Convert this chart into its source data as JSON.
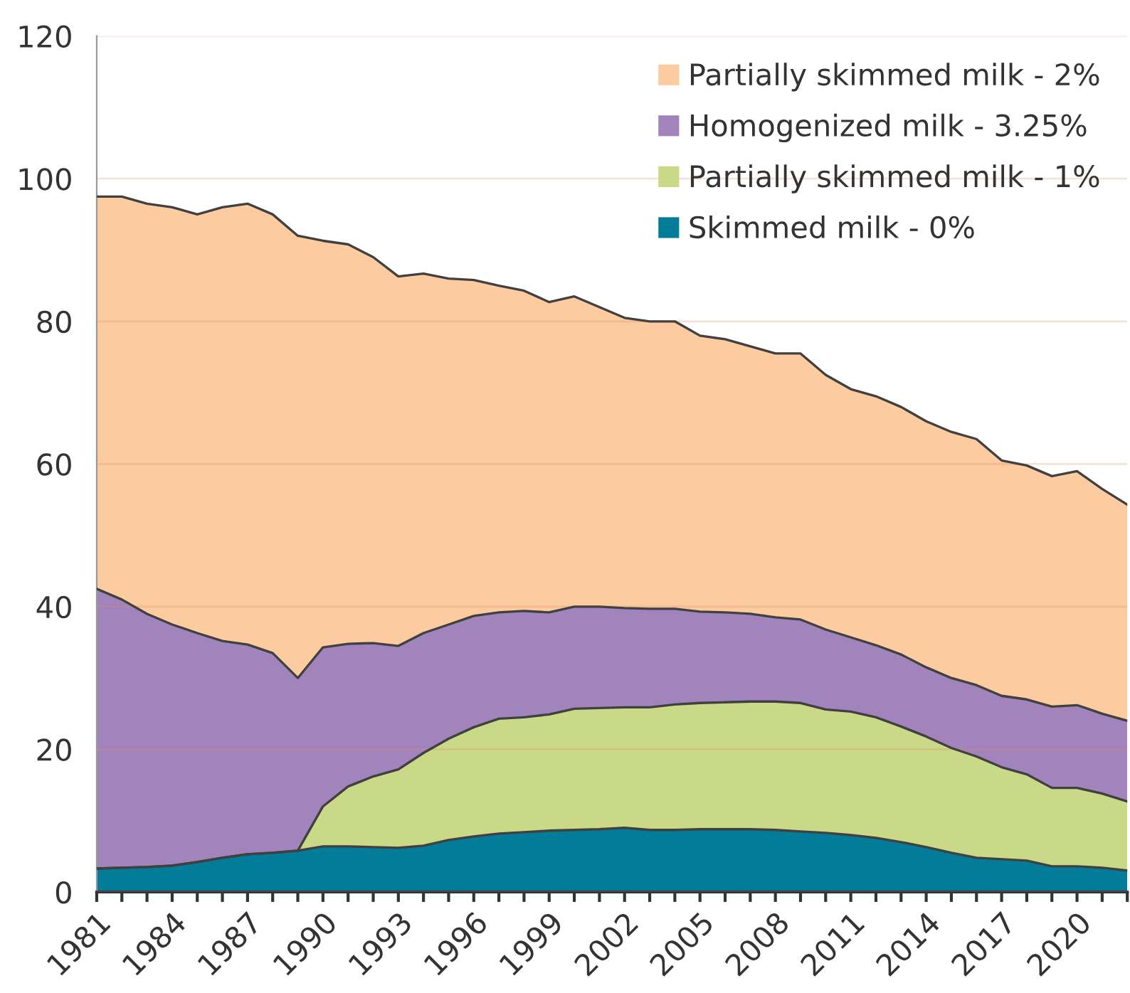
{
  "chart_data": {
    "type": "area",
    "stacked": true,
    "categories": [
      "1981",
      null,
      null,
      "1984",
      null,
      null,
      "1987",
      null,
      null,
      "1990",
      null,
      null,
      "1993",
      null,
      null,
      "1996",
      null,
      null,
      "1999",
      null,
      null,
      "2002",
      null,
      null,
      "2005",
      null,
      null,
      "2008",
      null,
      null,
      "2011",
      null,
      null,
      "2014",
      null,
      null,
      "2017",
      null,
      null,
      "2020",
      null,
      null
    ],
    "series": [
      {
        "name": "Skimmed milk - 0%",
        "color": "#037c99",
        "values": [
          3.3,
          3.4,
          3.5,
          3.7,
          4.2,
          4.8,
          5.3,
          5.5,
          5.8,
          6.4,
          6.4,
          6.3,
          6.2,
          6.5,
          7.3,
          7.8,
          8.2,
          8.4,
          8.6,
          8.7,
          8.8,
          9.0,
          8.7,
          8.7,
          8.8,
          8.8,
          8.8,
          8.7,
          8.5,
          8.3,
          8.0,
          7.6,
          7.0,
          6.3,
          5.5,
          4.8,
          4.6,
          4.4,
          3.6,
          3.6,
          3.4,
          3.0
        ]
      },
      {
        "name": "Partially skimmed milk - 1%",
        "color": "#c9d987",
        "values": [
          0,
          0,
          0,
          0,
          0,
          0,
          0,
          0,
          0,
          5.6,
          8.4,
          9.9,
          11.0,
          13.0,
          14.2,
          15.3,
          16.1,
          16.1,
          16.3,
          17.0,
          17.0,
          16.9,
          17.2,
          17.6,
          17.7,
          17.8,
          17.9,
          18.0,
          18.0,
          17.3,
          17.3,
          16.9,
          16.2,
          15.5,
          14.7,
          14.2,
          12.9,
          12.1,
          11.0,
          11.0,
          10.4,
          9.7
        ]
      },
      {
        "name": "Homogenized milk - 3.25%",
        "color": "#a084bb",
        "values": [
          39.2,
          37.6,
          35.5,
          33.8,
          32.1,
          30.4,
          29.4,
          28.0,
          24.2,
          22.3,
          20.0,
          18.7,
          17.3,
          16.8,
          16.0,
          15.6,
          14.9,
          14.9,
          14.3,
          14.3,
          14.2,
          13.9,
          13.8,
          13.4,
          12.8,
          12.6,
          12.3,
          11.8,
          11.7,
          11.2,
          10.4,
          10.1,
          10.1,
          9.7,
          9.8,
          10.0,
          10.0,
          10.5,
          11.4,
          11.6,
          11.2,
          11.3
        ]
      },
      {
        "name": "Partially skimmed milk - 2%",
        "color": "#fccba0",
        "values": [
          55.0,
          56.5,
          57.5,
          58.5,
          58.7,
          60.8,
          61.8,
          61.5,
          62.0,
          57.0,
          56.0,
          54.1,
          51.8,
          50.4,
          48.5,
          47.1,
          45.8,
          44.9,
          43.5,
          43.5,
          42.0,
          40.7,
          40.3,
          40.3,
          38.7,
          38.3,
          37.5,
          37.0,
          37.3,
          35.7,
          34.8,
          34.9,
          34.7,
          34.5,
          34.5,
          34.5,
          33.0,
          32.8,
          32.3,
          32.8,
          31.5,
          30.3
        ]
      }
    ],
    "ylim": [
      0,
      120
    ],
    "yticks": [
      0,
      20,
      40,
      60,
      80,
      100,
      120
    ],
    "grid": "y",
    "legend": "top right"
  }
}
